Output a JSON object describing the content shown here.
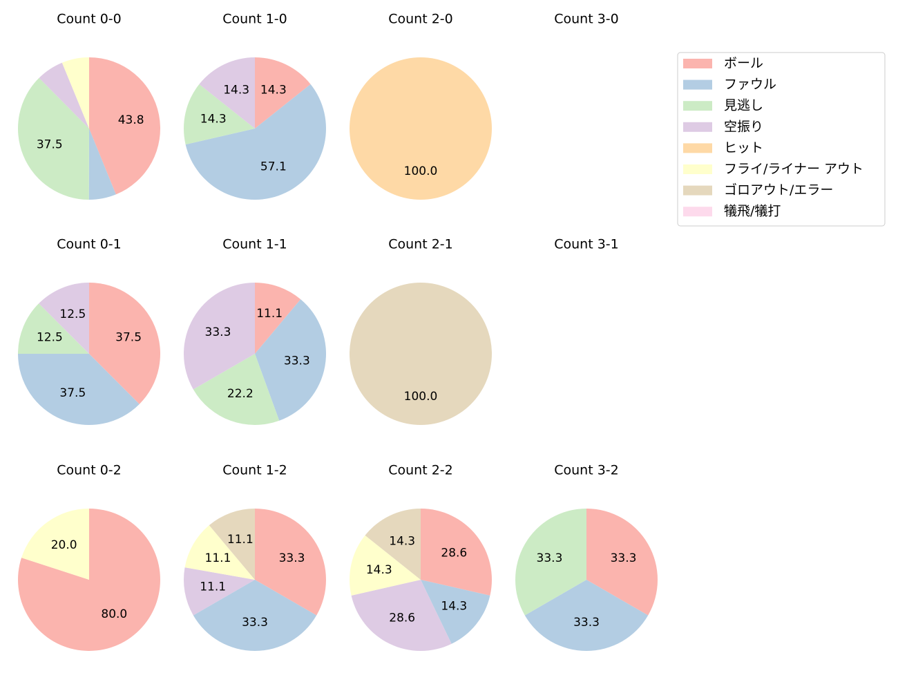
{
  "chart_data": [
    {
      "type": "pie",
      "title": "Count 0-0",
      "values": [
        43.8,
        6.2,
        37.5,
        6.2,
        6.2
      ],
      "value_labels": [
        "43.8",
        null,
        "37.5",
        null,
        null
      ],
      "colors": [
        "#fbb4ae",
        "#b3cde3",
        "#ccebc5",
        "#decbe4",
        "#ffffcc"
      ]
    },
    {
      "type": "pie",
      "title": "Count 1-0",
      "values": [
        14.3,
        57.1,
        14.3,
        14.3
      ],
      "value_labels": [
        "14.3",
        "57.1",
        "14.3",
        "14.3"
      ],
      "colors": [
        "#fbb4ae",
        "#b3cde3",
        "#ccebc5",
        "#decbe4"
      ]
    },
    {
      "type": "pie",
      "title": "Count 2-0",
      "values": [
        100
      ],
      "value_labels": [
        "100.0"
      ],
      "colors": [
        "#fed9a6"
      ]
    },
    {
      "type": "pie",
      "title": "Count 3-0",
      "values": [],
      "value_labels": [],
      "colors": []
    },
    {
      "type": "pie",
      "title": "Count 0-1",
      "values": [
        37.5,
        37.5,
        12.5,
        12.5
      ],
      "value_labels": [
        "37.5",
        "37.5",
        "12.5",
        "12.5"
      ],
      "colors": [
        "#fbb4ae",
        "#b3cde3",
        "#ccebc5",
        "#decbe4"
      ]
    },
    {
      "type": "pie",
      "title": "Count 1-1",
      "values": [
        11.1,
        33.3,
        22.2,
        33.3
      ],
      "value_labels": [
        "11.1",
        "33.3",
        "22.2",
        "33.3"
      ],
      "colors": [
        "#fbb4ae",
        "#b3cde3",
        "#ccebc5",
        "#decbe4"
      ]
    },
    {
      "type": "pie",
      "title": "Count 2-1",
      "values": [
        100
      ],
      "value_labels": [
        "100.0"
      ],
      "colors": [
        "#e5d8bd"
      ]
    },
    {
      "type": "pie",
      "title": "Count 3-1",
      "values": [],
      "value_labels": [],
      "colors": []
    },
    {
      "type": "pie",
      "title": "Count 0-2",
      "values": [
        80,
        20
      ],
      "value_labels": [
        "80.0",
        "20.0"
      ],
      "colors": [
        "#fbb4ae",
        "#ffffcc"
      ]
    },
    {
      "type": "pie",
      "title": "Count 1-2",
      "values": [
        33.3,
        33.3,
        11.1,
        11.1,
        11.1
      ],
      "value_labels": [
        "33.3",
        "33.3",
        "11.1",
        "11.1",
        "11.1"
      ],
      "colors": [
        "#fbb4ae",
        "#b3cde3",
        "#decbe4",
        "#ffffcc",
        "#e5d8bd"
      ]
    },
    {
      "type": "pie",
      "title": "Count 2-2",
      "values": [
        28.6,
        14.3,
        28.6,
        14.3,
        14.3
      ],
      "value_labels": [
        "28.6",
        "14.3",
        "28.6",
        "14.3",
        "14.3"
      ],
      "colors": [
        "#fbb4ae",
        "#b3cde3",
        "#decbe4",
        "#ffffcc",
        "#e5d8bd"
      ]
    },
    {
      "type": "pie",
      "title": "Count 3-2",
      "values": [
        33.3,
        33.3,
        33.3
      ],
      "value_labels": [
        "33.3",
        "33.3",
        "33.3"
      ],
      "colors": [
        "#fbb4ae",
        "#b3cde3",
        "#ccebc5"
      ]
    }
  ],
  "legend": {
    "labels": [
      "ボール",
      "ファウル",
      "見逃し",
      "空振り",
      "ヒット",
      "フライ/ライナー アウト",
      "ゴロアウト/エラー",
      "犠飛/犠打"
    ],
    "colors": [
      "#fbb4ae",
      "#b3cde3",
      "#ccebc5",
      "#decbe4",
      "#fed9a6",
      "#ffffcc",
      "#e5d8bd",
      "#fddaec"
    ]
  }
}
